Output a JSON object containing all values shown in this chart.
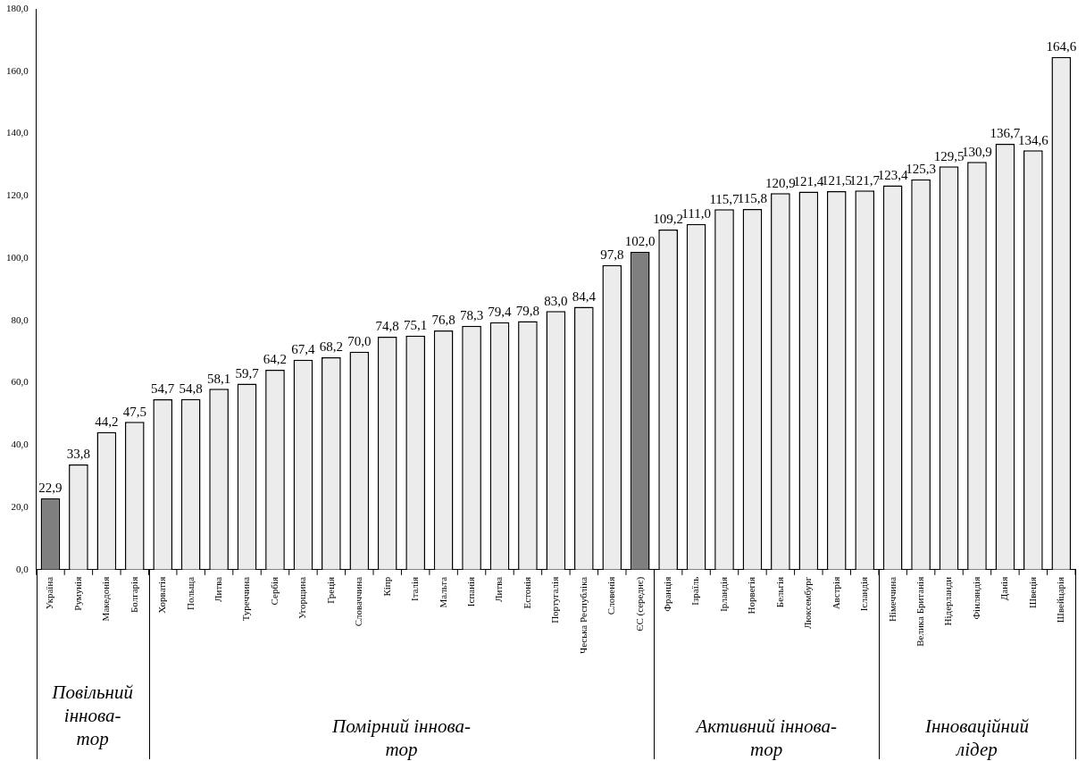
{
  "chart_data": {
    "type": "bar",
    "categories": [
      "Україна",
      "Румунія",
      "Македонія",
      "Болгарія",
      "Хорватія",
      "Польща",
      "Литва",
      "Туреччина",
      "Сербія",
      "Угорщина",
      "Греція",
      "Словаччина",
      "Кіпр",
      "Італія",
      "Мальта",
      "Іспанія",
      "Литва",
      "Естонія",
      "Португалія",
      "Чеська Республіка",
      "Словенія",
      "ЄС (середнє)",
      "Франція",
      "Ізраїль",
      "Ірландія",
      "Норвегія",
      "Бельгія",
      "Люксембург",
      "Австрія",
      "Ісландія",
      "Німеччина",
      "Велика Британія",
      "Нідерланди",
      "Фінляндія",
      "Данія",
      "Швеція",
      "Швейцарія"
    ],
    "values": [
      22.9,
      33.8,
      44.2,
      47.5,
      54.7,
      54.8,
      58.1,
      59.7,
      64.2,
      67.4,
      68.2,
      70.0,
      74.8,
      75.1,
      76.8,
      78.3,
      79.4,
      79.8,
      83.0,
      84.4,
      97.8,
      102.0,
      109.2,
      111.0,
      115.7,
      115.8,
      120.9,
      121.4,
      121.5,
      121.7,
      123.4,
      125.3,
      129.5,
      130.9,
      136.7,
      134.6,
      164.6
    ],
    "value_labels": [
      "22,9",
      "33,8",
      "44,2",
      "47,5",
      "54,7",
      "54,8",
      "58,1",
      "59,7",
      "64,2",
      "67,4",
      "68,2",
      "70,0",
      "74,8",
      "75,1",
      "76,8",
      "78,3",
      "79,4",
      "79,8",
      "83,0",
      "84,4",
      "97,8",
      "102,0",
      "109,2",
      "111,0",
      "115,7",
      "115,8",
      "120,9",
      "121,4",
      "121,5",
      "121,7",
      "123,4",
      "125,3",
      "129,5",
      "130,9",
      "136,7",
      "134,6",
      "164,6"
    ],
    "colors": [
      "#7f7f7f",
      "#ececec",
      "#ececec",
      "#ececec",
      "#ececec",
      "#ececec",
      "#ececec",
      "#ececec",
      "#ececec",
      "#ececec",
      "#ececec",
      "#ececec",
      "#ececec",
      "#ececec",
      "#ececec",
      "#ececec",
      "#ececec",
      "#ececec",
      "#ececec",
      "#ececec",
      "#ececec",
      "#7f7f7f",
      "#ececec",
      "#ececec",
      "#ececec",
      "#ececec",
      "#ececec",
      "#ececec",
      "#ececec",
      "#ececec",
      "#ececec",
      "#ececec",
      "#ececec",
      "#ececec",
      "#ececec",
      "#ececec",
      "#ececec"
    ],
    "ylim": [
      0,
      180
    ],
    "yticks": [
      {
        "value": 0,
        "label": "0,0"
      },
      {
        "value": 20,
        "label": "20,0"
      },
      {
        "value": 40,
        "label": "40,0"
      },
      {
        "value": 60,
        "label": "60,0"
      },
      {
        "value": 80,
        "label": "80,0"
      },
      {
        "value": 100,
        "label": "100,0"
      },
      {
        "value": 120,
        "label": "120,0"
      },
      {
        "value": 140,
        "label": "140,0"
      },
      {
        "value": 160,
        "label": "160,0"
      },
      {
        "value": 180,
        "label": "180,0"
      }
    ],
    "annotations": [
      "Повільний іннова-тор",
      "Помірний іннова-тор",
      "Активний іннова-тор",
      "Інноваційний лідер"
    ],
    "grid": false,
    "legend": false
  }
}
